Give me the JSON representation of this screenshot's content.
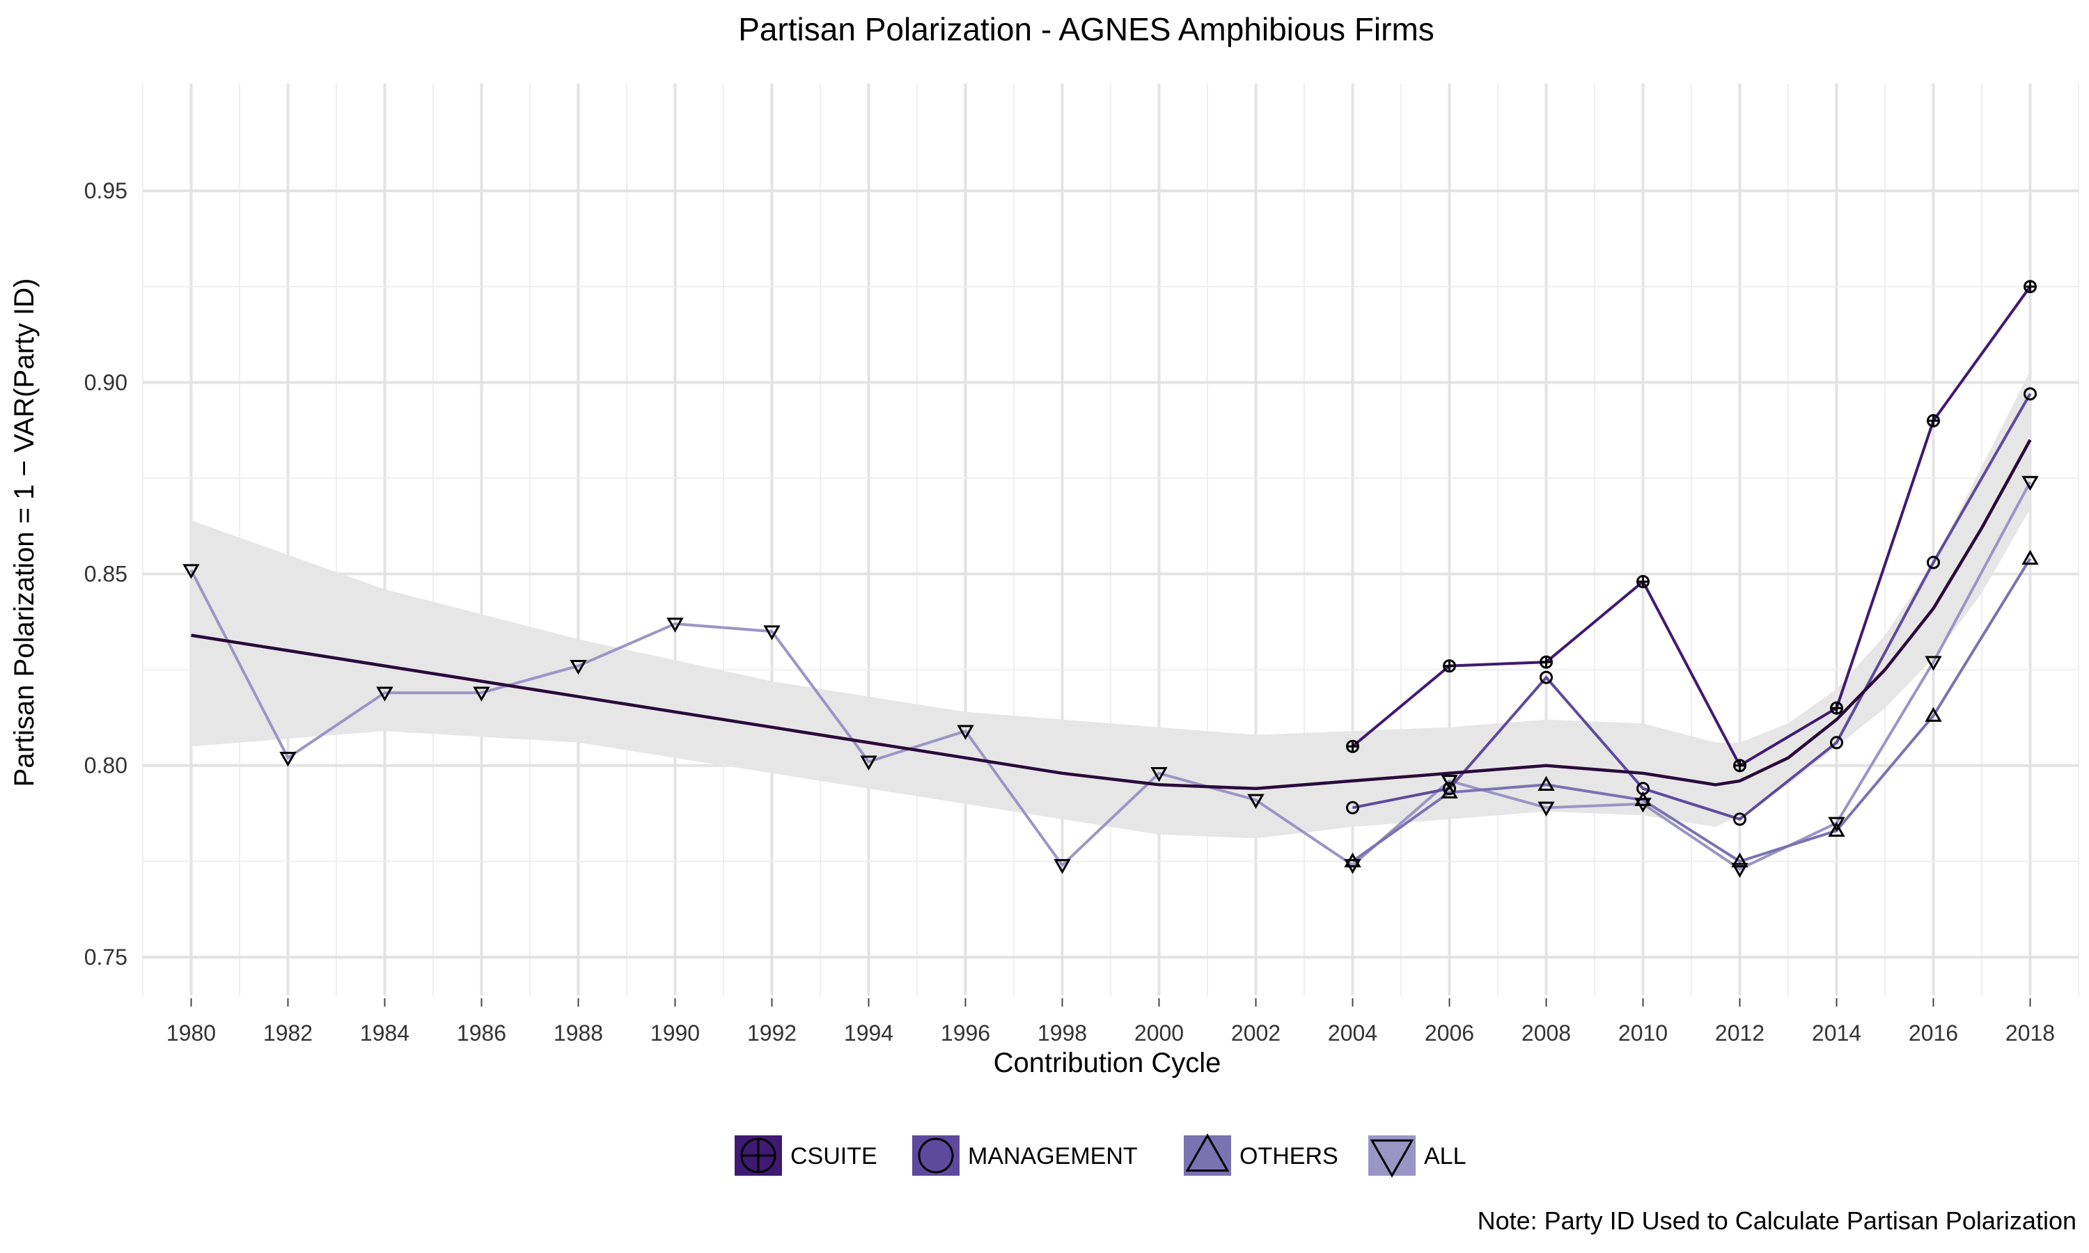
{
  "chart_data": {
    "type": "line",
    "title": "Partisan Polarization - AGNES Amphibious Firms",
    "xlabel": "Contribution Cycle",
    "ylabel": "Partisan Polarization = 1 − VAR(Party ID)",
    "xlim": [
      1979,
      2019
    ],
    "ylim": [
      0.74,
      0.978
    ],
    "x_ticks": [
      1980,
      1982,
      1984,
      1986,
      1988,
      1990,
      1992,
      1994,
      1996,
      1998,
      2000,
      2002,
      2004,
      2006,
      2008,
      2010,
      2012,
      2014,
      2016,
      2018
    ],
    "x_tick_labels": [
      "1980",
      "1982",
      "1984",
      "1986",
      "1988",
      "1990",
      "1992",
      "1994",
      "1996",
      "1998",
      "2000",
      "2002",
      "2004",
      "2006",
      "2008",
      "2010",
      "2012",
      "2014",
      "2016",
      "2018"
    ],
    "y_ticks": [
      0.75,
      0.8,
      0.85,
      0.9,
      0.95
    ],
    "y_tick_labels": [
      "0.75",
      "0.80",
      "0.85",
      "0.90",
      "0.95"
    ],
    "grid": true,
    "legend_position": "bottom",
    "note": "Note: Party ID Used to Calculate Partisan Polarization",
    "series": [
      {
        "name": "CSUITE",
        "shape": "circle-plus",
        "color": "#3f1a73",
        "points": [
          [
            2004,
            0.805
          ],
          [
            2006,
            0.826
          ],
          [
            2008,
            0.827
          ],
          [
            2010,
            0.848
          ],
          [
            2012,
            0.8
          ],
          [
            2014,
            0.815
          ],
          [
            2016,
            0.89
          ],
          [
            2018,
            0.925
          ]
        ]
      },
      {
        "name": "MANAGEMENT",
        "shape": "circle",
        "color": "#5e4a9c",
        "points": [
          [
            2004,
            0.789
          ],
          [
            2006,
            0.794
          ],
          [
            2008,
            0.823
          ],
          [
            2010,
            0.794
          ],
          [
            2012,
            0.786
          ],
          [
            2014,
            0.806
          ],
          [
            2016,
            0.853
          ],
          [
            2018,
            0.897
          ]
        ]
      },
      {
        "name": "OTHERS",
        "shape": "triangle-up",
        "color": "#7b72b1",
        "points": [
          [
            2004,
            0.775
          ],
          [
            2006,
            0.793
          ],
          [
            2008,
            0.795
          ],
          [
            2010,
            0.791
          ],
          [
            2012,
            0.775
          ],
          [
            2014,
            0.783
          ],
          [
            2016,
            0.813
          ],
          [
            2018,
            0.854
          ]
        ]
      },
      {
        "name": "ALL",
        "shape": "triangle-down",
        "color": "#9b95c6",
        "points": [
          [
            1980,
            0.851
          ],
          [
            1982,
            0.802
          ],
          [
            1984,
            0.819
          ],
          [
            1986,
            0.819
          ],
          [
            1988,
            0.826
          ],
          [
            1990,
            0.837
          ],
          [
            1992,
            0.835
          ],
          [
            1994,
            0.801
          ],
          [
            1996,
            0.809
          ],
          [
            1998,
            0.774
          ],
          [
            2000,
            0.798
          ],
          [
            2002,
            0.791
          ],
          [
            2004,
            0.774
          ],
          [
            2006,
            0.796
          ],
          [
            2008,
            0.789
          ],
          [
            2010,
            0.79
          ],
          [
            2012,
            0.773
          ],
          [
            2014,
            0.785
          ],
          [
            2016,
            0.827
          ],
          [
            2018,
            0.874
          ]
        ]
      }
    ],
    "smooth_line": {
      "color": "#2a0a3a",
      "points": [
        [
          1980,
          0.834
        ],
        [
          1984,
          0.826
        ],
        [
          1988,
          0.818
        ],
        [
          1992,
          0.81
        ],
        [
          1996,
          0.802
        ],
        [
          1998,
          0.798
        ],
        [
          2000,
          0.795
        ],
        [
          2002,
          0.794
        ],
        [
          2004,
          0.796
        ],
        [
          2006,
          0.798
        ],
        [
          2008,
          0.8
        ],
        [
          2010,
          0.798
        ],
        [
          2011.5,
          0.795
        ],
        [
          2012,
          0.796
        ],
        [
          2013,
          0.802
        ],
        [
          2014,
          0.812
        ],
        [
          2015,
          0.825
        ],
        [
          2016,
          0.841
        ],
        [
          2017,
          0.862
        ],
        [
          2018,
          0.885
        ]
      ]
    },
    "confidence_band": {
      "color": "#e6e6e6",
      "points": [
        [
          1980,
          0.805,
          0.864
        ],
        [
          1984,
          0.809,
          0.846
        ],
        [
          1988,
          0.806,
          0.833
        ],
        [
          1992,
          0.798,
          0.822
        ],
        [
          1996,
          0.79,
          0.814
        ],
        [
          2000,
          0.782,
          0.81
        ],
        [
          2002,
          0.781,
          0.808
        ],
        [
          2004,
          0.784,
          0.809
        ],
        [
          2006,
          0.786,
          0.81
        ],
        [
          2008,
          0.788,
          0.812
        ],
        [
          2010,
          0.787,
          0.811
        ],
        [
          2011.5,
          0.784,
          0.806
        ],
        [
          2012,
          0.787,
          0.806
        ],
        [
          2013,
          0.795,
          0.811
        ],
        [
          2014,
          0.805,
          0.82
        ],
        [
          2015,
          0.815,
          0.834
        ],
        [
          2016,
          0.828,
          0.853
        ],
        [
          2017,
          0.845,
          0.878
        ],
        [
          2018,
          0.867,
          0.903
        ]
      ]
    }
  }
}
